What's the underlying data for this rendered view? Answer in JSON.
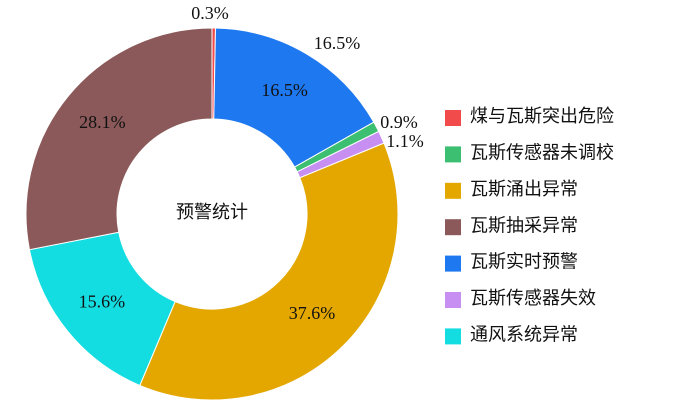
{
  "chart_data": {
    "type": "donut",
    "center_label": "预警统计",
    "categories": [
      "煤与瓦斯突出危险",
      "瓦斯传感器未调校",
      "瓦斯涌出异常",
      "瓦斯抽采异常",
      "瓦斯实时预警",
      "瓦斯传感器失效",
      "通风系统异常"
    ],
    "values": [
      0.3,
      0.9,
      37.6,
      28.1,
      16.5,
      1.1,
      15.6
    ],
    "value_labels": [
      "0.3%",
      "0.9%",
      "37.6%",
      "28.1%",
      "16.5%",
      "1.1%",
      "15.6%"
    ],
    "colors": [
      "#f24b4b",
      "#3cbf70",
      "#e3a700",
      "#8b5959",
      "#1e78f0",
      "#c88ff2",
      "#14dde2"
    ],
    "legend": "right"
  }
}
